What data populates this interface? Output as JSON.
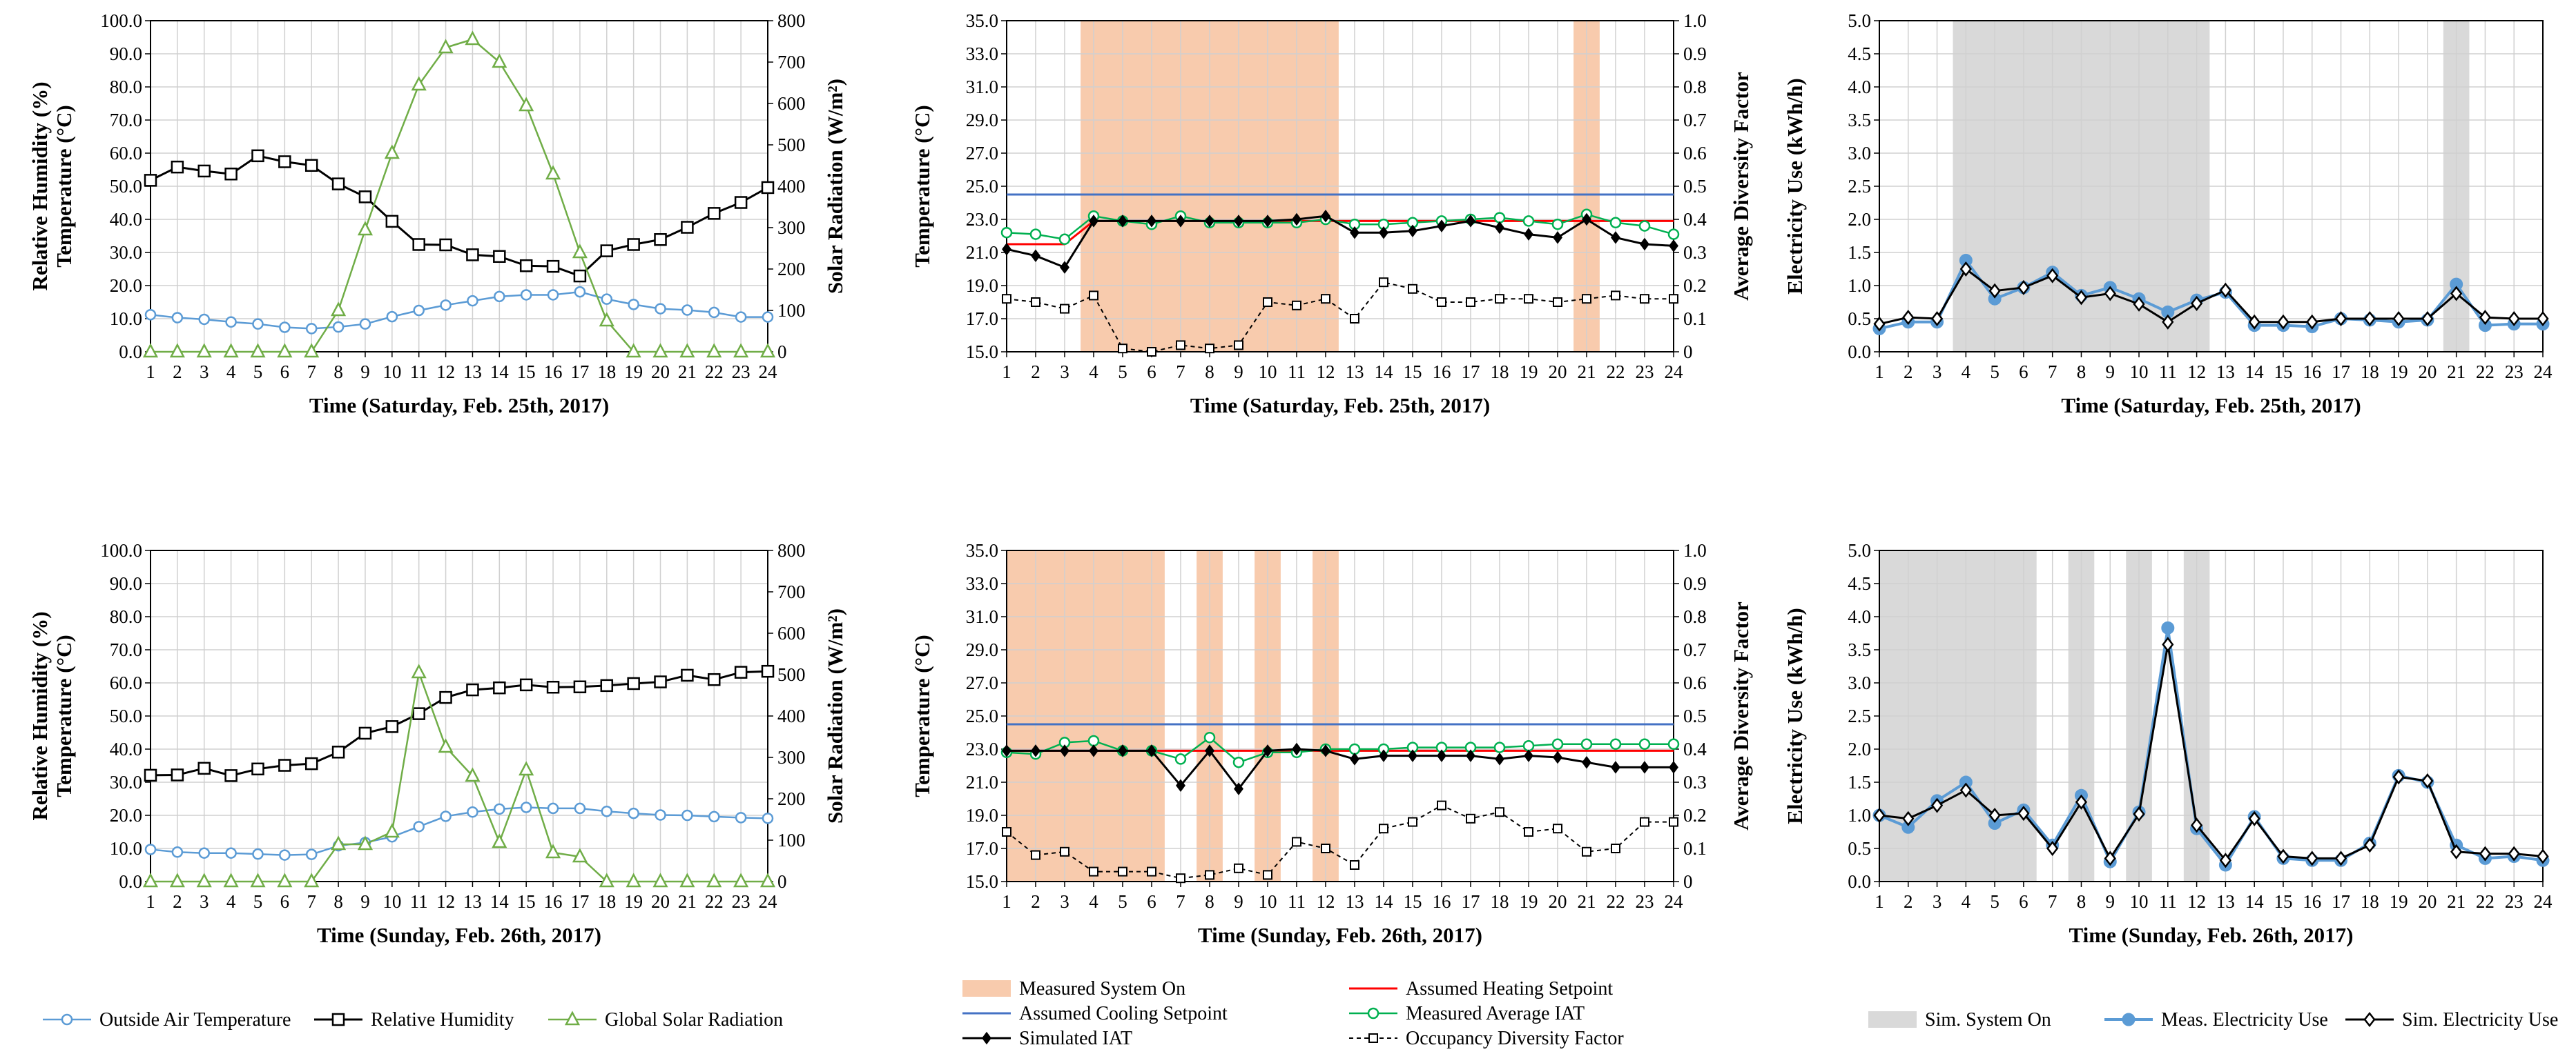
{
  "figure": {
    "legends": {
      "weather": [
        "Outside Air Temperature",
        "Relative Humidity",
        "Global Solar Radiation"
      ],
      "temperature": [
        "Measured System On",
        "Assumed Heating Setpoint",
        "Assumed Cooling Setpoint",
        "Measured Average IAT",
        "Simulated IAT",
        "Occupancy Diversity Factor"
      ],
      "electricity": [
        "Sim. System On",
        "Meas. Electricity Use",
        "Sim. Electricity Use"
      ]
    },
    "colors": {
      "outside_air_temperature": "#5b9bd5",
      "relative_humidity": "#000000",
      "global_solar_radiation": "#70ad47",
      "measured_system_on": "#f8cbad",
      "heating_setpoint": "#ff0000",
      "cooling_setpoint": "#4472c4",
      "measured_iat": "#00b050",
      "simulated_iat": "#000000",
      "occupancy": "#000000",
      "sim_system_on": "#d9d9d9",
      "meas_electricity": "#5b9bd5",
      "sim_electricity": "#000000"
    }
  },
  "chart_data": [
    {
      "type": "line",
      "xlabel": "Time (Saturday, Feb. 25th, 2017)",
      "ylabel": "Relative Humidity (%)\nTemperature (°C)",
      "y2label": "Solar Radiation (W/m²)",
      "x": [
        1,
        2,
        3,
        4,
        5,
        6,
        7,
        8,
        9,
        10,
        11,
        12,
        13,
        14,
        15,
        16,
        17,
        18,
        19,
        20,
        21,
        22,
        23,
        24
      ],
      "ylim": [
        0,
        100
      ],
      "y2lim": [
        0,
        800
      ],
      "yticks": [
        "0.0",
        "10.0",
        "20.0",
        "30.0",
        "40.0",
        "50.0",
        "60.0",
        "70.0",
        "80.0",
        "90.0",
        "100.0"
      ],
      "y2ticks": [
        "0",
        "100",
        "200",
        "300",
        "400",
        "500",
        "600",
        "700",
        "800"
      ],
      "grid": true,
      "series": [
        {
          "name": "Outside Air Temperature",
          "axis": "left",
          "values": [
            11.2,
            10.3,
            9.8,
            9.0,
            8.4,
            7.4,
            7.0,
            7.5,
            8.4,
            10.6,
            12.5,
            14.1,
            15.4,
            16.7,
            17.2,
            17.2,
            18.1,
            15.9,
            14.3,
            13.0,
            12.6,
            11.9,
            10.5,
            10.5
          ]
        },
        {
          "name": "Relative Humidity",
          "axis": "left",
          "values": [
            51.8,
            55.8,
            54.6,
            53.7,
            59.2,
            57.4,
            56.3,
            50.7,
            46.8,
            39.4,
            32.4,
            32.3,
            29.3,
            28.8,
            26.0,
            25.8,
            22.9,
            30.5,
            32.4,
            33.9,
            37.6,
            41.8,
            45.1,
            49.6
          ]
        },
        {
          "name": "Global Solar Radiation",
          "axis": "right",
          "values": [
            0,
            0,
            0,
            0,
            0,
            0,
            0,
            100,
            295,
            480,
            645,
            735,
            755,
            700,
            595,
            430,
            240,
            75,
            0,
            0,
            0,
            0,
            0,
            0
          ]
        }
      ]
    },
    {
      "type": "line",
      "xlabel": "Time (Saturday, Feb. 25th, 2017)",
      "ylabel": "Temperature (°C)",
      "y2label": "Average Diversity Factor",
      "x": [
        1,
        2,
        3,
        4,
        5,
        6,
        7,
        8,
        9,
        10,
        11,
        12,
        13,
        14,
        15,
        16,
        17,
        18,
        19,
        20,
        21,
        22,
        23,
        24
      ],
      "ylim": [
        15,
        35
      ],
      "y2lim": [
        0,
        1
      ],
      "yticks": [
        "15.0",
        "17.0",
        "19.0",
        "21.0",
        "23.0",
        "25.0",
        "27.0",
        "29.0",
        "31.0",
        "33.0",
        "35.0"
      ],
      "y2ticks": [
        "0",
        "0.1",
        "0.2",
        "0.3",
        "0.4",
        "0.5",
        "0.6",
        "0.7",
        "0.8",
        "0.9",
        "1.0"
      ],
      "grid": true,
      "shaded": {
        "name": "Measured System On",
        "spans": [
          [
            3.55,
            12.45
          ],
          [
            20.55,
            21.45
          ]
        ]
      },
      "series": [
        {
          "name": "Assumed Cooling Setpoint",
          "axis": "left",
          "values": [
            24.5,
            24.5,
            24.5,
            24.5,
            24.5,
            24.5,
            24.5,
            24.5,
            24.5,
            24.5,
            24.5,
            24.5,
            24.5,
            24.5,
            24.5,
            24.5,
            24.5,
            24.5,
            24.5,
            24.5,
            24.5,
            24.5,
            24.5,
            24.5
          ]
        },
        {
          "name": "Assumed Heating Setpoint",
          "axis": "left",
          "values": [
            21.5,
            21.5,
            21.5,
            22.9,
            22.9,
            22.9,
            22.9,
            22.9,
            22.9,
            22.9,
            22.9,
            22.9,
            22.9,
            22.9,
            22.9,
            22.9,
            22.9,
            22.9,
            22.9,
            22.9,
            22.9,
            22.9,
            22.9,
            22.9
          ]
        },
        {
          "name": "Measured Average IAT",
          "axis": "left",
          "values": [
            22.2,
            22.1,
            21.8,
            23.2,
            22.9,
            22.7,
            23.2,
            22.8,
            22.8,
            22.8,
            22.8,
            23.0,
            22.7,
            22.7,
            22.8,
            22.9,
            23.0,
            23.1,
            22.9,
            22.7,
            23.3,
            22.8,
            22.6,
            22.1
          ]
        },
        {
          "name": "Simulated IAT",
          "axis": "left",
          "values": [
            21.2,
            20.8,
            20.1,
            22.9,
            22.9,
            22.9,
            22.9,
            22.9,
            22.9,
            22.9,
            23.0,
            23.2,
            22.2,
            22.2,
            22.3,
            22.6,
            22.9,
            22.5,
            22.1,
            21.9,
            23.0,
            21.9,
            21.5,
            21.4
          ]
        },
        {
          "name": "Occupancy Diversity Factor",
          "axis": "right",
          "values": [
            0.16,
            0.15,
            0.13,
            0.17,
            0.01,
            0.0,
            0.02,
            0.01,
            0.02,
            0.15,
            0.14,
            0.16,
            0.1,
            0.21,
            0.19,
            0.15,
            0.15,
            0.16,
            0.16,
            0.15,
            0.16,
            0.17,
            0.16,
            0.16
          ]
        }
      ]
    },
    {
      "type": "line",
      "xlabel": "Time (Saturday, Feb. 25th, 2017)",
      "ylabel": "Electricity Use (kWh/h)",
      "x": [
        1,
        2,
        3,
        4,
        5,
        6,
        7,
        8,
        9,
        10,
        11,
        12,
        13,
        14,
        15,
        16,
        17,
        18,
        19,
        20,
        21,
        22,
        23,
        24
      ],
      "ylim": [
        0,
        5
      ],
      "yticks": [
        "0.0",
        "0.5",
        "1.0",
        "1.5",
        "2.0",
        "2.5",
        "3.0",
        "3.5",
        "4.0",
        "4.5",
        "5.0"
      ],
      "grid": true,
      "shaded": {
        "name": "Sim. System On",
        "spans": [
          [
            3.55,
            12.45
          ],
          [
            20.55,
            21.45
          ]
        ]
      },
      "series": [
        {
          "name": "Meas. Electricity Use",
          "values": [
            0.35,
            0.45,
            0.45,
            1.38,
            0.8,
            0.97,
            1.2,
            0.85,
            0.97,
            0.8,
            0.6,
            0.78,
            0.9,
            0.4,
            0.4,
            0.38,
            0.5,
            0.48,
            0.45,
            0.48,
            1.02,
            0.4,
            0.42,
            0.42
          ]
        },
        {
          "name": "Sim. Electricity Use",
          "values": [
            0.42,
            0.52,
            0.5,
            1.25,
            0.92,
            0.97,
            1.15,
            0.82,
            0.88,
            0.72,
            0.45,
            0.73,
            0.93,
            0.45,
            0.45,
            0.45,
            0.5,
            0.5,
            0.5,
            0.5,
            0.88,
            0.52,
            0.5,
            0.5
          ]
        }
      ]
    },
    {
      "type": "line",
      "xlabel": "Time (Sunday,  Feb. 26th, 2017)",
      "ylabel": "Relative Humidity (%)\nTemperature (°C)",
      "y2label": "Solar Radiation (W/m²)",
      "x": [
        1,
        2,
        3,
        4,
        5,
        6,
        7,
        8,
        9,
        10,
        11,
        12,
        13,
        14,
        15,
        16,
        17,
        18,
        19,
        20,
        21,
        22,
        23,
        24
      ],
      "ylim": [
        0,
        100
      ],
      "y2lim": [
        0,
        800
      ],
      "yticks": [
        "0.0",
        "10.0",
        "20.0",
        "30.0",
        "40.0",
        "50.0",
        "60.0",
        "70.0",
        "80.0",
        "90.0",
        "100.0"
      ],
      "y2ticks": [
        "0",
        "100",
        "200",
        "300",
        "400",
        "500",
        "600",
        "700",
        "800"
      ],
      "grid": true,
      "series": [
        {
          "name": "Outside Air Temperature",
          "axis": "left",
          "values": [
            9.7,
            8.9,
            8.6,
            8.6,
            8.3,
            8.0,
            8.2,
            10.8,
            11.8,
            13.5,
            16.6,
            19.7,
            21.0,
            21.9,
            22.4,
            22.1,
            22.1,
            21.2,
            20.6,
            20.1,
            20.0,
            19.6,
            19.3,
            19.1
          ]
        },
        {
          "name": "Relative Humidity",
          "axis": "left",
          "values": [
            32.1,
            32.2,
            34.2,
            32.0,
            34.0,
            35.1,
            35.6,
            39.1,
            44.8,
            46.8,
            50.7,
            55.6,
            57.9,
            58.5,
            59.4,
            58.7,
            58.8,
            59.2,
            59.8,
            60.3,
            62.3,
            61.0,
            63.2,
            63.5
          ]
        },
        {
          "name": "Global Solar Radiation",
          "axis": "right",
          "values": [
            0,
            0,
            0,
            0,
            0,
            0,
            0,
            90,
            90,
            120,
            505,
            325,
            255,
            95,
            270,
            70,
            60,
            0,
            0,
            0,
            0,
            0,
            0,
            0
          ]
        }
      ]
    },
    {
      "type": "line",
      "xlabel": "Time (Sunday,  Feb. 26th, 2017)",
      "ylabel": "Temperature (°C)",
      "y2label": "Average Diversity Factor",
      "x": [
        1,
        2,
        3,
        4,
        5,
        6,
        7,
        8,
        9,
        10,
        11,
        12,
        13,
        14,
        15,
        16,
        17,
        18,
        19,
        20,
        21,
        22,
        23,
        24
      ],
      "ylim": [
        15,
        35
      ],
      "y2lim": [
        0,
        1
      ],
      "yticks": [
        "15.0",
        "17.0",
        "19.0",
        "21.0",
        "23.0",
        "25.0",
        "27.0",
        "29.0",
        "31.0",
        "33.0",
        "35.0"
      ],
      "y2ticks": [
        "0",
        "0.1",
        "0.2",
        "0.3",
        "0.4",
        "0.5",
        "0.6",
        "0.7",
        "0.8",
        "0.9",
        "1.0"
      ],
      "grid": true,
      "shaded": {
        "name": "Measured System On",
        "spans": [
          [
            1.0,
            6.45
          ],
          [
            7.55,
            8.45
          ],
          [
            9.55,
            10.45
          ],
          [
            11.55,
            12.45
          ]
        ]
      },
      "series": [
        {
          "name": "Assumed Cooling Setpoint",
          "axis": "left",
          "values": [
            24.5,
            24.5,
            24.5,
            24.5,
            24.5,
            24.5,
            24.5,
            24.5,
            24.5,
            24.5,
            24.5,
            24.5,
            24.5,
            24.5,
            24.5,
            24.5,
            24.5,
            24.5,
            24.5,
            24.5,
            24.5,
            24.5,
            24.5,
            24.5
          ]
        },
        {
          "name": "Assumed Heating Setpoint",
          "axis": "left",
          "values": [
            22.9,
            22.9,
            22.9,
            22.9,
            22.9,
            22.9,
            22.9,
            22.9,
            22.9,
            22.9,
            22.9,
            22.9,
            22.9,
            22.9,
            22.9,
            22.9,
            22.9,
            22.9,
            22.9,
            22.9,
            22.9,
            22.9,
            22.9,
            22.9
          ]
        },
        {
          "name": "Measured Average IAT",
          "axis": "left",
          "values": [
            22.8,
            22.7,
            23.4,
            23.5,
            22.9,
            22.9,
            22.4,
            23.7,
            22.2,
            22.8,
            22.8,
            23.0,
            23.0,
            23.0,
            23.1,
            23.1,
            23.1,
            23.1,
            23.2,
            23.3,
            23.3,
            23.3,
            23.3,
            23.3
          ]
        },
        {
          "name": "Simulated IAT",
          "axis": "left",
          "values": [
            22.9,
            22.9,
            22.9,
            22.9,
            22.9,
            22.9,
            20.8,
            22.9,
            20.6,
            22.9,
            23.0,
            22.9,
            22.4,
            22.6,
            22.6,
            22.6,
            22.6,
            22.4,
            22.6,
            22.5,
            22.2,
            21.9,
            21.9,
            21.9
          ]
        },
        {
          "name": "Occupancy Diversity Factor",
          "axis": "right",
          "values": [
            0.15,
            0.08,
            0.09,
            0.03,
            0.03,
            0.03,
            0.01,
            0.02,
            0.04,
            0.02,
            0.12,
            0.1,
            0.05,
            0.16,
            0.18,
            0.23,
            0.19,
            0.21,
            0.15,
            0.16,
            0.09,
            0.1,
            0.18,
            0.18
          ]
        }
      ]
    },
    {
      "type": "line",
      "xlabel": "Time (Sunday,  Feb. 26th, 2017)",
      "ylabel": "Electricity Use (kWh/h)",
      "x": [
        1,
        2,
        3,
        4,
        5,
        6,
        7,
        8,
        9,
        10,
        11,
        12,
        13,
        14,
        15,
        16,
        17,
        18,
        19,
        20,
        21,
        22,
        23,
        24
      ],
      "ylim": [
        0,
        5
      ],
      "yticks": [
        "0.0",
        "0.5",
        "1.0",
        "1.5",
        "2.0",
        "2.5",
        "3.0",
        "3.5",
        "4.0",
        "4.5",
        "5.0"
      ],
      "grid": true,
      "shaded": {
        "name": "Sim. System On",
        "spans": [
          [
            1.0,
            6.45
          ],
          [
            7.55,
            8.45
          ],
          [
            9.55,
            10.45
          ],
          [
            11.55,
            12.45
          ]
        ]
      },
      "series": [
        {
          "name": "Meas. Electricity Use",
          "values": [
            1.0,
            0.82,
            1.22,
            1.5,
            0.88,
            1.08,
            0.55,
            1.3,
            0.3,
            1.05,
            3.83,
            0.8,
            0.25,
            0.98,
            0.35,
            0.32,
            0.32,
            0.58,
            1.6,
            1.5,
            0.55,
            0.35,
            0.38,
            0.32
          ]
        },
        {
          "name": "Sim. Electricity Use",
          "values": [
            1.0,
            0.95,
            1.15,
            1.38,
            1.0,
            1.03,
            0.5,
            1.2,
            0.35,
            1.02,
            3.58,
            0.85,
            0.32,
            0.95,
            0.38,
            0.35,
            0.35,
            0.55,
            1.58,
            1.52,
            0.45,
            0.42,
            0.42,
            0.38
          ]
        }
      ]
    }
  ]
}
